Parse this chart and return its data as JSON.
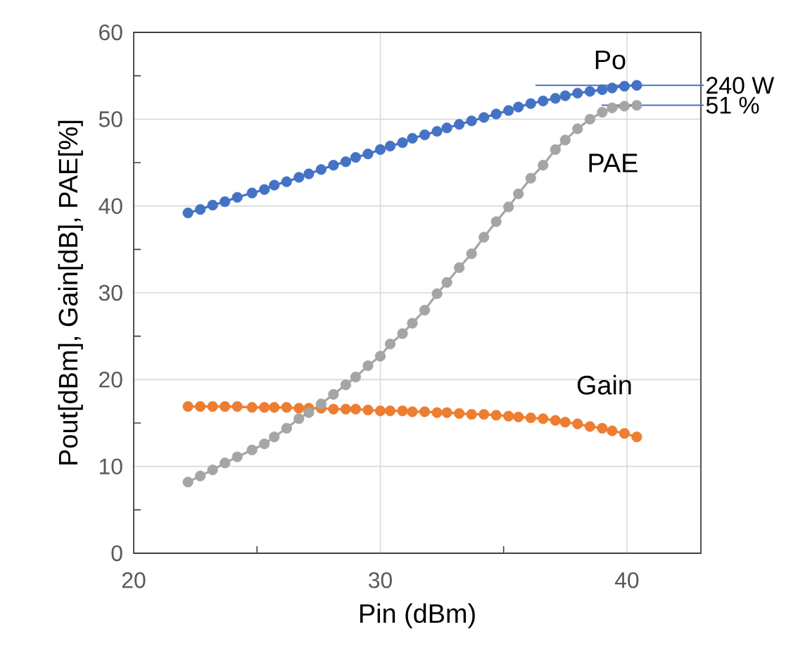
{
  "chart_data": {
    "type": "line",
    "xlabel": "Pin (dBm)",
    "ylabel": "Pout[dBm], Gain[dB], PAE[%]",
    "x": [
      22.2,
      22.7,
      23.2,
      23.7,
      24.2,
      24.8,
      25.3,
      25.7,
      26.2,
      26.7,
      27.1,
      27.6,
      28.1,
      28.6,
      29.0,
      29.5,
      30.0,
      30.4,
      30.9,
      31.3,
      31.8,
      32.3,
      32.7,
      33.2,
      33.7,
      34.2,
      34.7,
      35.2,
      35.6,
      36.1,
      36.6,
      37.1,
      37.5,
      38.0,
      38.5,
      39.0,
      39.4,
      39.9,
      40.4
    ],
    "series": [
      {
        "name": "Po",
        "color": "#4472c4",
        "values": [
          39.2,
          39.6,
          40.1,
          40.5,
          41.0,
          41.5,
          41.9,
          42.4,
          42.8,
          43.3,
          43.7,
          44.2,
          44.7,
          45.1,
          45.6,
          46.0,
          46.5,
          46.9,
          47.3,
          47.8,
          48.2,
          48.6,
          49.0,
          49.4,
          49.8,
          50.2,
          50.6,
          51.0,
          51.4,
          51.8,
          52.1,
          52.4,
          52.7,
          53.0,
          53.2,
          53.4,
          53.6,
          53.8,
          53.9
        ]
      },
      {
        "name": "Gain",
        "color": "#ed7d31",
        "values": [
          16.9,
          16.9,
          16.9,
          16.9,
          16.9,
          16.8,
          16.8,
          16.8,
          16.8,
          16.7,
          16.7,
          16.7,
          16.6,
          16.6,
          16.6,
          16.5,
          16.4,
          16.4,
          16.4,
          16.3,
          16.3,
          16.2,
          16.2,
          16.1,
          16.0,
          16.0,
          15.9,
          15.8,
          15.7,
          15.6,
          15.5,
          15.3,
          15.1,
          14.9,
          14.6,
          14.4,
          14.1,
          13.8,
          13.4
        ]
      },
      {
        "name": "PAE",
        "color": "#a5a5a5",
        "values": [
          8.2,
          8.9,
          9.6,
          10.4,
          11.1,
          11.9,
          12.6,
          13.4,
          14.4,
          15.5,
          16.2,
          17.2,
          18.3,
          19.4,
          20.3,
          21.6,
          22.7,
          24.1,
          25.3,
          26.5,
          28.0,
          29.9,
          31.2,
          32.9,
          34.5,
          36.4,
          38.2,
          39.9,
          41.4,
          43.2,
          44.7,
          46.5,
          47.6,
          48.9,
          50.0,
          50.8,
          51.3,
          51.5,
          51.6
        ]
      }
    ],
    "xlim": [
      20,
      43
    ],
    "ylim": [
      0,
      60
    ],
    "xticks": [
      20,
      {
        "value": 25,
        "label": null
      },
      30,
      {
        "value": 35,
        "label": null
      },
      40
    ],
    "yticks": [
      0,
      {
        "value": 5,
        "label": null
      },
      10,
      {
        "value": 15,
        "label": null
      },
      20,
      {
        "value": 25,
        "label": null
      },
      30,
      {
        "value": 35,
        "label": null
      },
      40,
      {
        "value": 45,
        "label": null
      },
      50,
      {
        "value": 55,
        "label": null
      },
      60
    ],
    "grid": true,
    "marker": "circle",
    "line_style": "solid",
    "annotations": [
      {
        "text": "240 W",
        "x": 40.4,
        "y": 53.9
      },
      {
        "text": "51 %",
        "x": 40.4,
        "y": 51.6
      }
    ]
  }
}
